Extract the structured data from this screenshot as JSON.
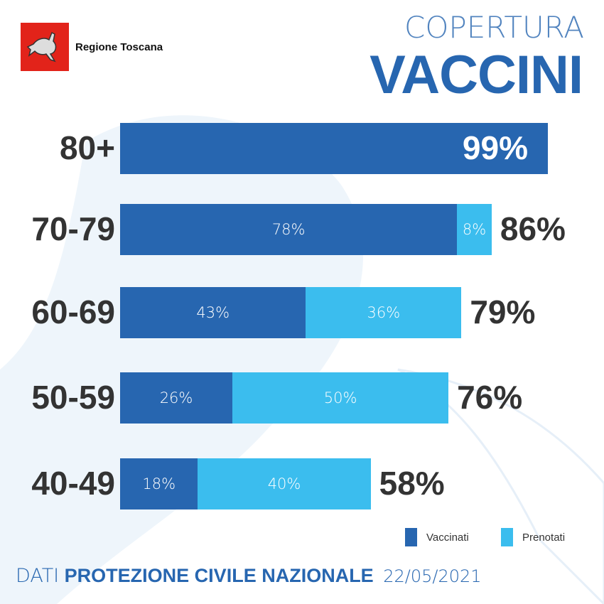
{
  "header": {
    "brand": "Regione Toscana",
    "title_line1": "COPERTURA",
    "title_line2": "VACCINI"
  },
  "colors": {
    "vaccinati": "#2766b0",
    "prenotati": "#3bbdee",
    "logo": "#e2231a"
  },
  "chart_data": {
    "type": "bar",
    "orientation": "horizontal",
    "stacked": true,
    "categories": [
      "80+",
      "70-79",
      "60-69",
      "50-59",
      "40-49"
    ],
    "series": [
      {
        "name": "Vaccinati",
        "values": [
          99,
          78,
          43,
          26,
          18
        ],
        "labels": [
          "",
          "78%",
          "43%",
          "26%",
          "18%"
        ]
      },
      {
        "name": "Prenotati",
        "values": [
          0,
          8,
          36,
          50,
          40
        ],
        "labels": [
          "",
          "8%",
          "36%",
          "50%",
          "40%"
        ]
      }
    ],
    "totals": [
      "99%",
      "86%",
      "79%",
      "76%",
      "58%"
    ],
    "xlim": [
      0,
      100
    ],
    "legend": "bottom-right",
    "grid": false
  },
  "legend": {
    "vaccinati": "Vaccinati",
    "prenotati": "Prenotati"
  },
  "footer": {
    "prefix": "DATI",
    "source": "PROTEZIONE CIVILE NAZIONALE",
    "date": "22/05/2021"
  }
}
